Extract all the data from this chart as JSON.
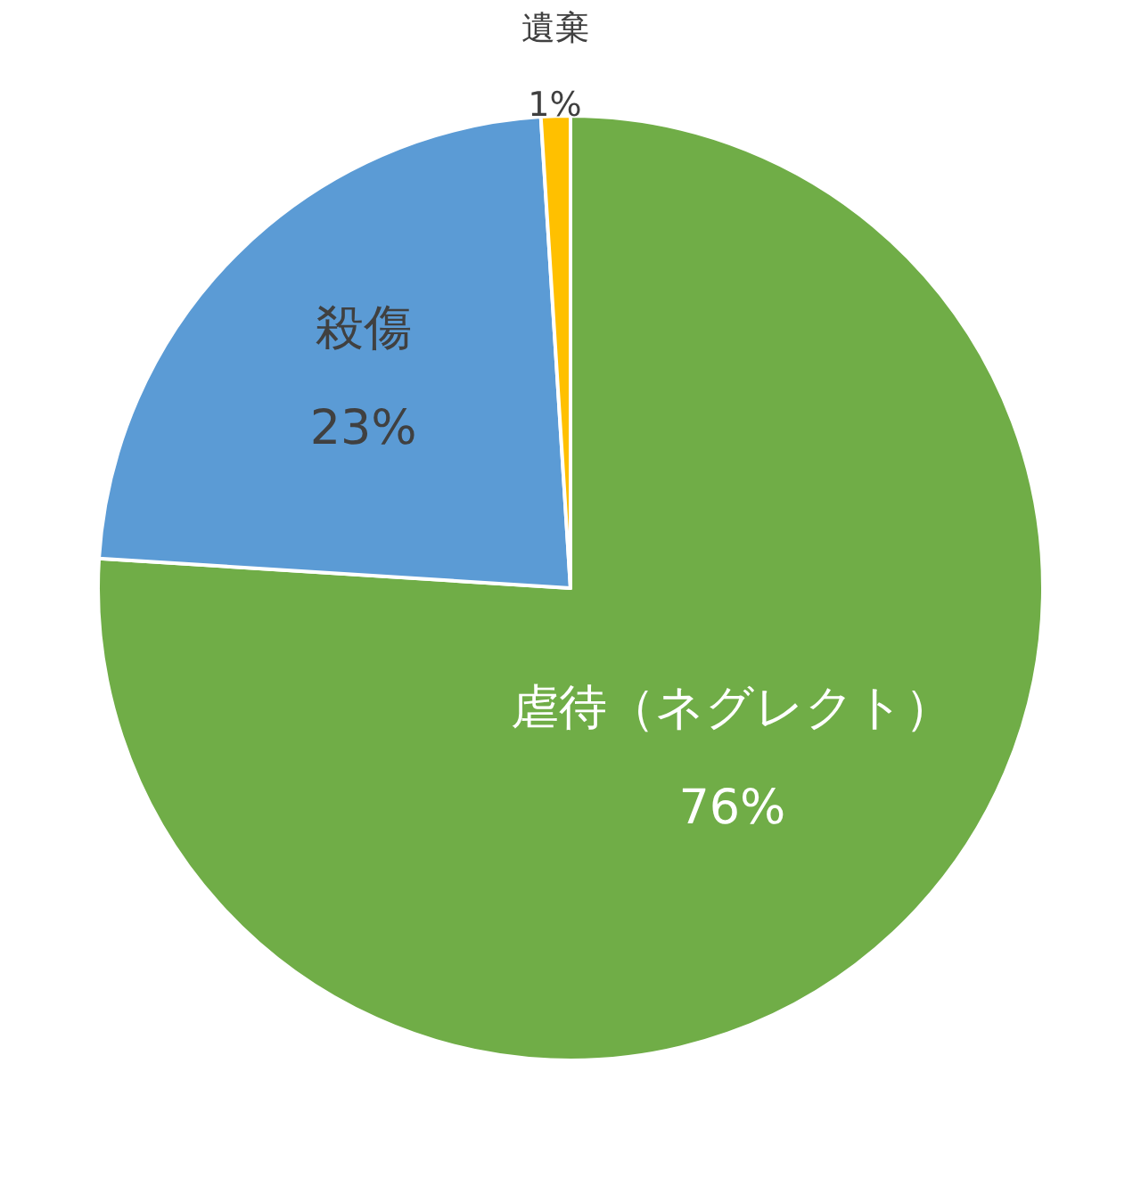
{
  "chart_data": {
    "type": "pie",
    "categories": [
      "虐待（ネグレクト）",
      "殺傷",
      "遺棄"
    ],
    "values": [
      76,
      23,
      1
    ],
    "colors": [
      "#70ad47",
      "#5b9bd5",
      "#ffc000"
    ],
    "value_labels": [
      "76%",
      "23%",
      "1%"
    ]
  }
}
